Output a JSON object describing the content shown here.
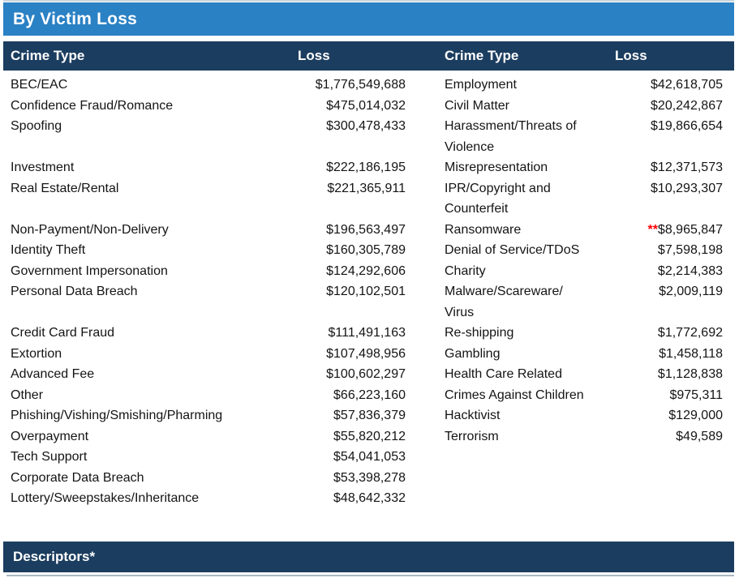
{
  "section": {
    "title": "By Victim Loss",
    "footer_section_title": "Descriptors*"
  },
  "columns": [
    "Crime Type",
    "Loss",
    "Crime Type",
    "Loss"
  ],
  "rows": [
    {
      "c1": "BEC/EAC",
      "v1": "$1,776,549,688",
      "c2": "Employment",
      "v2": "$42,618,705"
    },
    {
      "c1": "Confidence Fraud/Romance",
      "v1": "$475,014,032",
      "c2": "Civil Matter",
      "v2": "$20,242,867"
    },
    {
      "c1": "Spoofing",
      "v1": "$300,478,433",
      "c2": "Harassment/Threats of\nViolence",
      "v2": "$19,866,654"
    },
    {
      "c1": "Investment",
      "v1": "$222,186,195",
      "c2": "Misrepresentation",
      "v2": "$12,371,573"
    },
    {
      "c1": "Real Estate/Rental",
      "v1": "$221,365,911",
      "c2": "IPR/Copyright and\nCounterfeit",
      "v2": "$10,293,307"
    },
    {
      "c1": "Non-Payment/Non-Delivery",
      "v1": "$196,563,497",
      "c2": "Ransomware",
      "v2": "$8,965,847",
      "marker2": "**"
    },
    {
      "c1": "Identity Theft",
      "v1": "$160,305,789",
      "c2": "Denial of Service/TDoS",
      "v2": "$7,598,198"
    },
    {
      "c1": "Government Impersonation",
      "v1": "$124,292,606",
      "c2": "Charity",
      "v2": "$2,214,383"
    },
    {
      "c1": "Personal Data Breach",
      "v1": "$120,102,501",
      "c2": "Malware/Scareware/\nVirus",
      "v2": "$2,009,119"
    },
    {
      "c1": "Credit Card Fraud",
      "v1": "$111,491,163",
      "c2": "Re-shipping",
      "v2": "$1,772,692"
    },
    {
      "c1": "Extortion",
      "v1": "$107,498,956",
      "c2": "Gambling",
      "v2": "$1,458,118"
    },
    {
      "c1": "Advanced Fee",
      "v1": "$100,602,297",
      "c2": "Health Care Related",
      "v2": "$1,128,838"
    },
    {
      "c1": "Other",
      "v1": "$66,223,160",
      "c2": "Crimes Against Children",
      "v2": "$975,311"
    },
    {
      "c1": "Phishing/Vishing/Smishing/Pharming",
      "v1": "$57,836,379",
      "c2": "Hacktivist",
      "v2": "$129,000"
    },
    {
      "c1": "Overpayment",
      "v1": "$55,820,212",
      "c2": "Terrorism",
      "v2": "$49,589"
    },
    {
      "c1": "Tech Support",
      "v1": "$54,041,053",
      "c2": "",
      "v2": ""
    },
    {
      "c1": "Corporate Data Breach",
      "v1": "$53,398,278",
      "c2": "",
      "v2": ""
    },
    {
      "c1": "Lottery/Sweepstakes/Inheritance",
      "v1": "$48,642,332",
      "c2": "",
      "v2": ""
    }
  ],
  "colors": {
    "title_bar_blue": "#2A81C4",
    "header_navy": "#1B3D5F",
    "marker_red": "#FF0000"
  }
}
